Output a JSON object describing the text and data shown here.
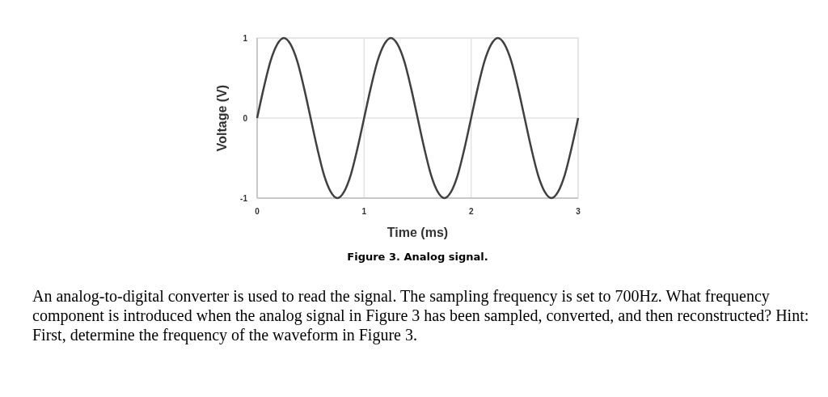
{
  "chart_data": {
    "type": "line",
    "title": "Figure 3. Analog signal.",
    "xlabel": "Time (ms)",
    "ylabel": "Voltage (V)",
    "x": [
      0,
      0.0625,
      0.125,
      0.1875,
      0.25,
      0.3125,
      0.375,
      0.4375,
      0.5,
      0.5625,
      0.625,
      0.6875,
      0.75,
      0.8125,
      0.875,
      0.9375,
      1,
      1.0625,
      1.125,
      1.1875,
      1.25,
      1.3125,
      1.375,
      1.4375,
      1.5,
      1.5625,
      1.625,
      1.6875,
      1.75,
      1.8125,
      1.875,
      1.9375,
      2,
      2.0625,
      2.125,
      2.1875,
      2.25,
      2.3125,
      2.375,
      2.4375,
      2.5,
      2.5625,
      2.625,
      2.6875,
      2.75,
      2.8125,
      2.875,
      2.9375,
      3
    ],
    "series": [
      {
        "color": "#404040",
        "values": [
          0,
          0.38,
          0.71,
          0.92,
          1,
          0.92,
          0.71,
          0.38,
          0,
          -0.38,
          -0.71,
          -0.92,
          -1,
          -0.92,
          -0.71,
          -0.38,
          0,
          0.38,
          0.71,
          0.92,
          1,
          0.92,
          0.71,
          0.38,
          0,
          -0.38,
          -0.71,
          -0.92,
          -1,
          -0.92,
          -0.71,
          -0.38,
          0,
          0.38,
          0.71,
          0.92,
          1,
          0.92,
          0.71,
          0.38,
          0,
          -0.38,
          -0.71,
          -0.92,
          -1,
          -0.92,
          -0.71,
          -0.38,
          0
        ]
      }
    ],
    "xlim": [
      0,
      3
    ],
    "ylim": [
      -1,
      1
    ],
    "xticks": [
      0,
      1,
      2,
      3
    ],
    "yticks": [
      -1,
      0,
      1
    ],
    "grid": true,
    "marker": "none",
    "line_style": "solid",
    "annotations": [
      "An analog-to-digital converter is used to read the signal. The sampling frequency is set to 700Hz. What frequency component is introduced when the analog signal in Figure 3 has been sampled, converted, and then reconstructed? Hint: First, determine the frequency of the waveform in Figure 3."
    ]
  }
}
